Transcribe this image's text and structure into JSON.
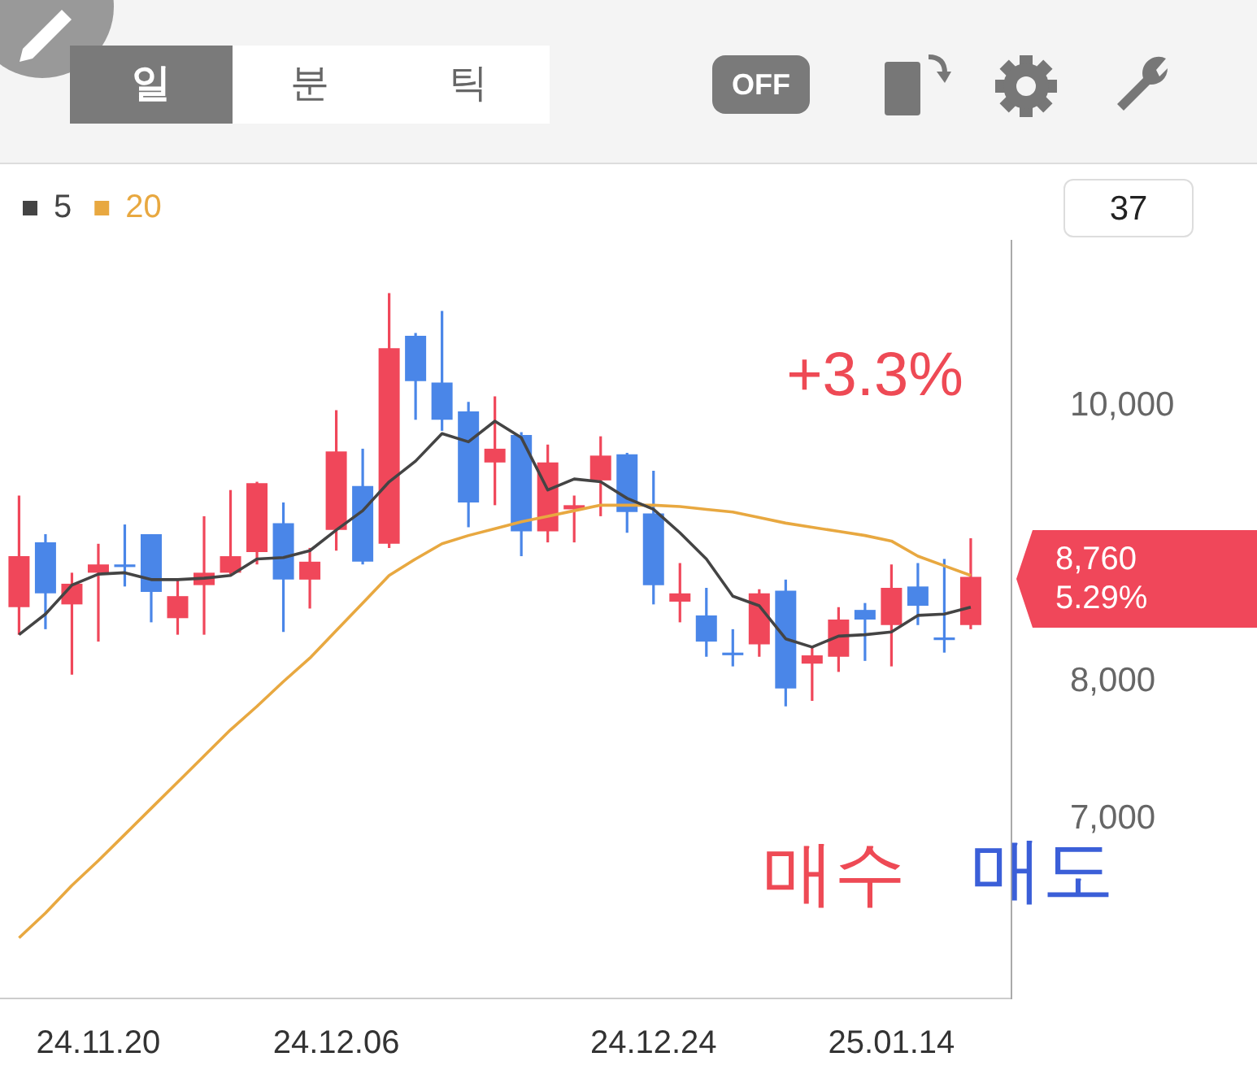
{
  "chart_data": {
    "type": "candlestick",
    "categories": [
      null,
      null,
      null,
      "24.11.20",
      null,
      null,
      null,
      null,
      null,
      null,
      null,
      null,
      "24.12.06",
      null,
      null,
      null,
      null,
      null,
      null,
      null,
      null,
      null,
      null,
      null,
      "24.12.24",
      null,
      null,
      null,
      null,
      null,
      null,
      null,
      null,
      "25.01.14",
      null,
      null,
      null
    ],
    "ohlc": [
      [
        8540,
        9350,
        8340,
        8910
      ],
      [
        9010,
        9070,
        8380,
        8640
      ],
      [
        8560,
        8790,
        8050,
        8710
      ],
      [
        8790,
        9000,
        8290,
        8850
      ],
      [
        8850,
        9140,
        8690,
        8840
      ],
      [
        9070,
        9070,
        8430,
        8650
      ],
      [
        8460,
        8740,
        8340,
        8620
      ],
      [
        8700,
        9200,
        8340,
        8790
      ],
      [
        8790,
        9390,
        8780,
        8910
      ],
      [
        8940,
        9450,
        8850,
        9440
      ],
      [
        9150,
        9300,
        8360,
        8740
      ],
      [
        8740,
        8970,
        8530,
        8870
      ],
      [
        9100,
        9970,
        8950,
        9670
      ],
      [
        9420,
        9690,
        8850,
        8870
      ],
      [
        9000,
        10820,
        8970,
        10420
      ],
      [
        10510,
        10530,
        9900,
        10180
      ],
      [
        10170,
        10690,
        9820,
        9900
      ],
      [
        9960,
        10030,
        9120,
        9300
      ],
      [
        9590,
        10070,
        9280,
        9690
      ],
      [
        9790,
        9810,
        8910,
        9090
      ],
      [
        9090,
        9720,
        9010,
        9590
      ],
      [
        9250,
        9350,
        9010,
        9280
      ],
      [
        9460,
        9780,
        9200,
        9640
      ],
      [
        9650,
        9660,
        9080,
        9230
      ],
      [
        9220,
        9530,
        8560,
        8700
      ],
      [
        8580,
        8860,
        8430,
        8640
      ],
      [
        8480,
        8680,
        8180,
        8290
      ],
      [
        8210,
        8380,
        8110,
        8200
      ],
      [
        8270,
        8670,
        8180,
        8640
      ],
      [
        8660,
        8740,
        7820,
        7950
      ],
      [
        8130,
        8260,
        7860,
        8190
      ],
      [
        8180,
        8540,
        8070,
        8450
      ],
      [
        8520,
        8570,
        8150,
        8450
      ],
      [
        8410,
        8850,
        8110,
        8680
      ],
      [
        8690,
        8860,
        8410,
        8550
      ],
      [
        8320,
        8890,
        8210,
        8310
      ],
      [
        8410,
        9040,
        8380,
        8760
      ]
    ],
    "colors": [
      "#f0475a",
      "#4a86e8",
      "#f0475a",
      "#f0475a",
      "#4a86e8",
      "#4a86e8",
      "#f0475a",
      "#f0475a",
      "#f0475a",
      "#f0475a",
      "#4a86e8",
      "#f0475a",
      "#f0475a",
      "#4a86e8",
      "#f0475a",
      "#4a86e8",
      "#4a86e8",
      "#4a86e8",
      "#f0475a",
      "#4a86e8",
      "#f0475a",
      "#f0475a",
      "#f0475a",
      "#4a86e8",
      "#4a86e8",
      "#f0475a",
      "#4a86e8",
      "#4a86e8",
      "#f0475a",
      "#4a86e8",
      "#f0475a",
      "#f0475a",
      "#4a86e8",
      "#f0475a",
      "#4a86e8",
      "#4a86e8",
      "#f0475a"
    ],
    "series": [
      {
        "name": "5",
        "type": "line",
        "color": "#444444",
        "values": [
          8340,
          8490,
          8700,
          8780,
          8790,
          8740,
          8740,
          8750,
          8770,
          8890,
          8900,
          8950,
          9100,
          9240,
          9450,
          9600,
          9800,
          9740,
          9890,
          9770,
          9390,
          9470,
          9450,
          9330,
          9250,
          9080,
          8890,
          8620,
          8550,
          8310,
          8250,
          8330,
          8340,
          8360,
          8480,
          8490,
          8540
        ]
      },
      {
        "name": "20",
        "type": "line",
        "color": "#e8a840",
        "values": [
          6140,
          6320,
          6520,
          6700,
          6890,
          7080,
          7270,
          7460,
          7650,
          7820,
          8000,
          8170,
          8370,
          8570,
          8770,
          8890,
          9000,
          9060,
          9110,
          9160,
          9200,
          9240,
          9280,
          9280,
          9280,
          9270,
          9250,
          9230,
          9190,
          9150,
          9120,
          9090,
          9060,
          9020,
          8910,
          8840,
          8770
        ]
      }
    ],
    "ylim": [
      5700,
      11200
    ],
    "yticks": [
      {
        "value": 7000,
        "label": "7,000"
      },
      {
        "value": 8000,
        "label": "8,000"
      },
      {
        "value": 10000,
        "label": "10,000"
      }
    ],
    "legend": "top left",
    "grid": false,
    "marker": "none",
    "annotations": [
      "일",
      "분",
      "틱",
      "OFF",
      "37",
      "8,760\n5.29%",
      "+3.3%",
      "매수",
      "매도"
    ]
  }
}
